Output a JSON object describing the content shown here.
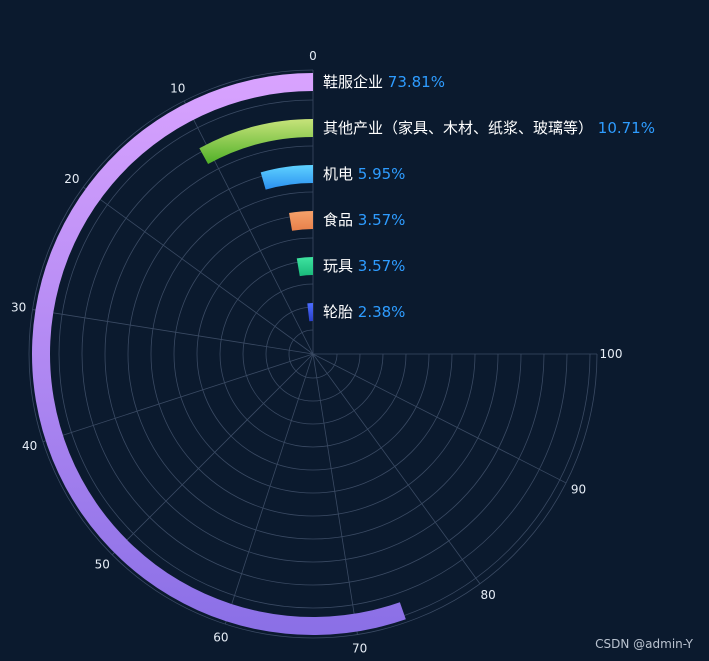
{
  "chart_data": {
    "type": "bar",
    "coordinate_system": "polar",
    "angle_axis": {
      "min": 0,
      "max": 100,
      "ticks": [
        0,
        10,
        20,
        30,
        40,
        50,
        60,
        70,
        80,
        90,
        100
      ]
    },
    "categories": [
      "鞋服企业",
      "其他产业（家具、木材、纸浆、玻璃等）",
      "机电",
      "食品",
      "玩具",
      "轮胎"
    ],
    "values": [
      73.81,
      10.71,
      5.95,
      3.57,
      3.57,
      2.38
    ],
    "value_labels": [
      "73.81%",
      "10.71%",
      "5.95%",
      "3.57%",
      "3.57%",
      "2.38%"
    ],
    "colors": [
      [
        "#d9a3ff",
        "#8a6fe6"
      ],
      [
        "#c7e37a",
        "#4fb027"
      ],
      [
        "#5fd2ff",
        "#2a8ff0"
      ],
      [
        "#f6a16a",
        "#e8804a"
      ],
      [
        "#3fe3a0",
        "#19b97a"
      ],
      [
        "#4c6dff",
        "#2a3fc9"
      ]
    ],
    "grid": true,
    "legend": "none"
  },
  "watermark": "CSDN @admin-Y"
}
